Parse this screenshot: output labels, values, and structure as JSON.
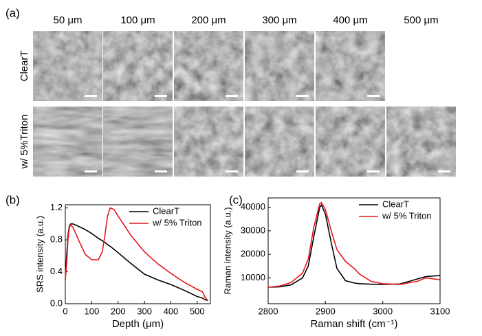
{
  "figure": {
    "panel_a": {
      "label": "(a)",
      "columns": [
        "50 μm",
        "100 μm",
        "200 μm",
        "300 μm",
        "400 μm",
        "500 μm"
      ],
      "rows": [
        "ClearT",
        "w/ 5%Triton"
      ]
    }
  },
  "chart_data": [
    {
      "type": "line",
      "label": "(b)",
      "xlabel": "Depth (μm)",
      "ylabel": "SRS intensity (a.u.)",
      "xlim": [
        0,
        550
      ],
      "xticks": [
        0,
        100,
        200,
        300,
        400,
        500
      ],
      "ylim": [
        0,
        1.24
      ],
      "yticks": [
        {
          "value": 0,
          "label": "0.0"
        },
        0.4,
        0.8,
        1.2
      ],
      "legend": "upper right",
      "x": [
        0,
        5,
        10,
        15,
        20,
        30,
        50,
        75,
        100,
        125,
        140,
        150,
        160,
        170,
        185,
        200,
        250,
        300,
        350,
        400,
        450,
        500,
        520,
        530,
        540
      ],
      "series": [
        {
          "name": "ClearT",
          "color": "#000000",
          "values": [
            0.3,
            0.6,
            0.85,
            0.97,
            1.0,
            1.0,
            0.97,
            0.93,
            0.88,
            0.82,
            0.79,
            0.77,
            0.74,
            0.72,
            0.68,
            0.64,
            0.5,
            0.37,
            0.3,
            0.24,
            0.17,
            0.09,
            0.07,
            0.05,
            0.04
          ]
        },
        {
          "name": "w/ 5% Triton",
          "color": "#e8141c",
          "values": [
            0.3,
            0.5,
            0.8,
            0.95,
            0.99,
            0.95,
            0.8,
            0.62,
            0.55,
            0.55,
            0.65,
            0.85,
            1.1,
            1.2,
            1.18,
            1.1,
            0.85,
            0.65,
            0.5,
            0.38,
            0.27,
            0.18,
            0.15,
            0.08,
            0.04
          ]
        }
      ]
    },
    {
      "type": "line",
      "label": "(c)",
      "xlabel": "Raman shift (cm⁻¹)",
      "ylabel": "Raman intensity (a.u.)",
      "xlim": [
        2800,
        3100
      ],
      "xticks": [
        2800,
        2900,
        3000,
        3100
      ],
      "ylim": [
        -1000,
        44000
      ],
      "yticks": [
        10000,
        20000,
        30000,
        40000
      ],
      "legend": "upper right",
      "x": [
        2800,
        2820,
        2840,
        2860,
        2870,
        2880,
        2890,
        2893,
        2900,
        2910,
        2920,
        2935,
        2950,
        2960,
        2980,
        3000,
        3030,
        3060,
        3075,
        3090,
        3100
      ],
      "series": [
        {
          "name": "ClearT",
          "color": "#000000",
          "values": [
            6000,
            6200,
            7000,
            10000,
            15000,
            28000,
            40000,
            41000,
            37000,
            25000,
            14000,
            8800,
            7800,
            7500,
            7300,
            7200,
            7400,
            9500,
            10500,
            10800,
            11000
          ]
        },
        {
          "name": "w/ 5% Triton",
          "color": "#e8141c",
          "values": [
            6000,
            6500,
            8000,
            12000,
            18000,
            32000,
            41500,
            42000,
            39000,
            30000,
            22000,
            17000,
            14000,
            11500,
            8500,
            7500,
            7200,
            8500,
            10000,
            9500,
            9200
          ]
        }
      ]
    }
  ]
}
